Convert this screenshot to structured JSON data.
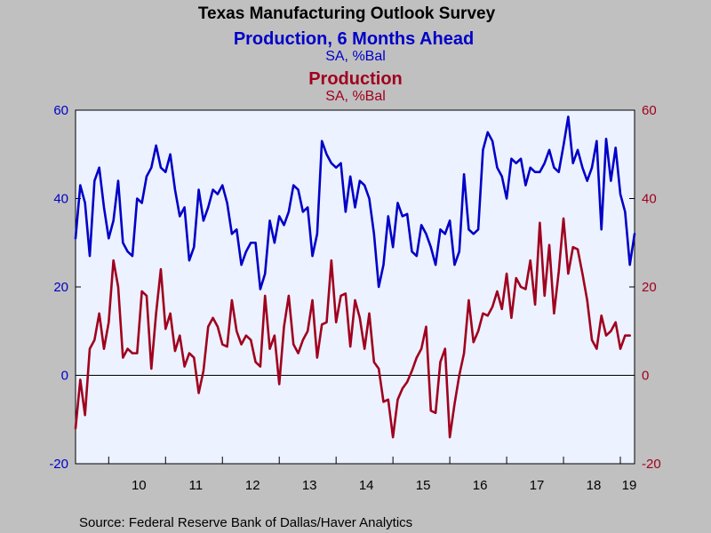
{
  "title": "Texas Manufacturing Outlook Survey",
  "source": "Source:  Federal Reserve Bank of Dallas/Haver Analytics",
  "colors": {
    "series1": "#0000c8",
    "series2": "#a0001e",
    "plot_bg": "#ecf2ff",
    "page_bg": "#c0c0c0"
  },
  "chart_data": {
    "type": "line",
    "x_start": "2009-06",
    "x_end": "2019-04",
    "frequency": "monthly",
    "x_tick_labels": [
      "10",
      "11",
      "12",
      "13",
      "14",
      "15",
      "16",
      "17",
      "18",
      "19"
    ],
    "y_left": {
      "lim": [
        -20,
        60
      ],
      "ticks": [
        -20,
        0,
        20,
        40,
        60
      ]
    },
    "y_right": {
      "lim": [
        -20,
        60
      ],
      "ticks": [
        -20,
        0,
        20,
        40,
        60
      ]
    },
    "grid": false,
    "zero_line": true,
    "series": [
      {
        "name": "Production, 6 Months Ahead",
        "unit": "SA, %Bal",
        "axis": "left",
        "values": [
          31,
          43,
          39,
          27,
          44,
          47,
          38,
          31,
          35,
          44,
          30,
          28,
          27,
          40,
          39,
          45,
          47,
          52,
          47,
          46,
          50,
          42,
          36,
          38,
          26,
          29,
          42,
          35,
          38,
          42,
          41,
          43,
          39,
          32,
          33,
          25,
          28,
          30,
          30,
          19.5,
          23,
          35,
          30,
          36,
          34,
          37,
          43,
          42,
          37,
          38,
          27,
          32,
          53,
          50,
          48,
          47,
          48,
          37,
          45,
          38,
          44,
          43,
          40,
          32,
          20,
          25,
          36,
          29,
          39,
          36,
          36.5,
          28,
          27,
          34,
          32,
          29,
          25,
          33,
          32,
          35,
          25,
          28,
          45.5,
          33,
          32,
          33,
          51,
          55,
          53,
          47,
          45,
          40,
          49,
          48,
          49,
          43,
          47,
          46,
          46,
          48,
          51,
          47,
          46,
          52,
          58.5,
          48,
          51,
          47,
          44,
          47,
          53,
          33,
          53.5,
          44,
          51.5,
          41,
          37,
          25,
          32
        ]
      },
      {
        "name": "Production",
        "unit": "SA, %Bal",
        "axis": "right",
        "values": [
          -12,
          -1,
          -9,
          6,
          8,
          14,
          6,
          12,
          26,
          20,
          4,
          6,
          5,
          5,
          19,
          18,
          1.5,
          14,
          24,
          10.5,
          14,
          5.5,
          9,
          2,
          5,
          4,
          -4,
          1,
          11,
          13,
          11,
          7,
          6.5,
          17,
          10,
          7,
          9,
          8,
          3,
          2,
          18,
          6,
          9,
          -2,
          11,
          18,
          7,
          5,
          8,
          10,
          17,
          4,
          11.5,
          12,
          26,
          12,
          18,
          18.5,
          6.5,
          17,
          13,
          6,
          14,
          3,
          1.5,
          -6,
          -5.5,
          -14,
          -5.5,
          -3,
          -1.5,
          1,
          4,
          6,
          11,
          -8,
          -8.5,
          3,
          6,
          -14,
          -6.5,
          0,
          5,
          17,
          7.5,
          10,
          14,
          13.5,
          15.5,
          19,
          15,
          23,
          13,
          22,
          20,
          19.5,
          26,
          16,
          34.5,
          18,
          29.5,
          14,
          23.5,
          35.5,
          23,
          29,
          28.5,
          23,
          17,
          8,
          6,
          13.5,
          9,
          10,
          12,
          6,
          9,
          9
        ]
      }
    ]
  }
}
